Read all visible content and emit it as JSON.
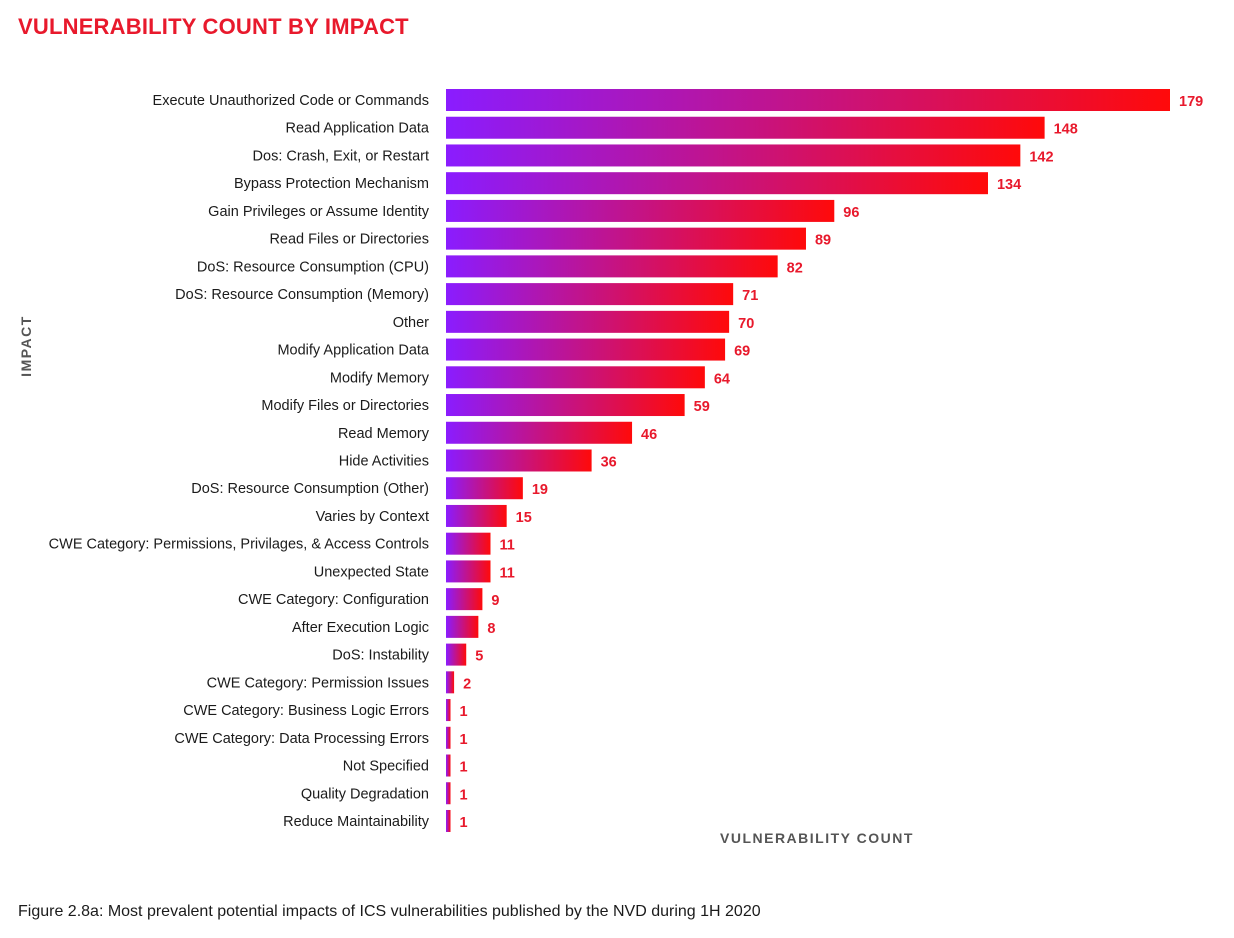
{
  "page": {
    "caption": "Figure 2.8a: Most prevalent potential impacts of ICS vulnerabilities published by the NVD during 1H 2020"
  },
  "colors": {
    "accent": "#e8192c",
    "bar_gradient_start": "#8a1cff",
    "bar_gradient_end": "#ff0a0a",
    "axis_title": "#555555"
  },
  "chart_data": {
    "type": "bar",
    "orientation": "horizontal",
    "title": "VULNERABILITY COUNT BY IMPACT",
    "xlabel": "VULNERABILITY COUNT",
    "ylabel": "IMPACT",
    "xlim": [
      0,
      179
    ],
    "grid": false,
    "legend": "none",
    "categories": [
      "Execute Unauthorized Code or Commands",
      "Read Application Data",
      "Dos: Crash, Exit, or Restart",
      "Bypass Protection Mechanism",
      "Gain Privileges or Assume Identity",
      "Read Files or Directories",
      "DoS: Resource Consumption (CPU)",
      "DoS: Resource Consumption (Memory)",
      "Other",
      "Modify Application Data",
      "Modify Memory",
      "Modify Files or Directories",
      "Read Memory",
      "Hide Activities",
      "DoS: Resource Consumption (Other)",
      "Varies by Context",
      "CWE Category:  Permissions, Privilages, & Access Controls",
      "Unexpected State",
      "CWE Category: Configuration",
      "After Execution Logic",
      "DoS: Instability",
      "CWE Category: Permission Issues",
      "CWE Category: Business Logic Errors",
      "CWE Category: Data Processing Errors",
      "Not Specified",
      "Quality Degradation",
      "Reduce Maintainability"
    ],
    "values": [
      179,
      148,
      142,
      134,
      96,
      89,
      82,
      71,
      70,
      69,
      64,
      59,
      46,
      36,
      19,
      15,
      11,
      11,
      9,
      8,
      5,
      2,
      1,
      1,
      1,
      1,
      1
    ]
  }
}
